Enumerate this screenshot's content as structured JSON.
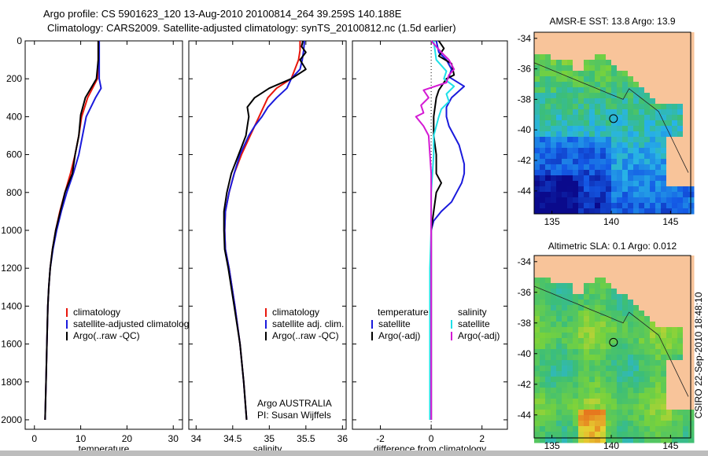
{
  "header": {
    "line1": "Argo profile: CS 5901623_120 13-Aug-2010 20100814_264 39.259S 140.188E",
    "line2": "Climatology: CARS2009. Satellite-adjusted climatology: synTS_20100812.nc (1.5d earlier)"
  },
  "side_credit": "CSIRO 22-Sep-2010 18:48:10",
  "colors": {
    "climatology": "#e8160c",
    "satellite": "#1a1adc",
    "argo": "#000000",
    "satellite_salinity": "#1ee0e8",
    "argo_salinity": "#d41ad4",
    "land": "#f8c49a"
  },
  "chart_data": [
    {
      "id": "temperature",
      "type": "line",
      "xlabel": "temperature",
      "ylabel": "",
      "xlim": [
        -2,
        32
      ],
      "ylim": [
        2050,
        0
      ],
      "xticks": [
        "0",
        "10",
        "20",
        "30"
      ],
      "yticks": [
        "0",
        "200",
        "400",
        "600",
        "800",
        "1000",
        "1200",
        "1400",
        "1600",
        "1800",
        "2000"
      ],
      "legend": [
        "climatology",
        "satellite-adjusted climatology",
        "Argo(..raw -QC)"
      ],
      "series": [
        {
          "name": "climatology",
          "depth": [
            0,
            100,
            200,
            300,
            400,
            500,
            600,
            700,
            800,
            900,
            1000,
            1100,
            1200,
            1300,
            1400,
            1500,
            1600,
            1800,
            2000
          ],
          "values": [
            13.8,
            13.8,
            13.6,
            11.5,
            10.2,
            9.6,
            8.8,
            7.8,
            6.6,
            5.5,
            4.6,
            3.9,
            3.4,
            3.1,
            2.9,
            2.8,
            2.7,
            2.5,
            2.3
          ]
        },
        {
          "name": "satellite-adjusted climatology",
          "depth": [
            0,
            100,
            200,
            250,
            300,
            400,
            500,
            600,
            700,
            800,
            900,
            1000,
            1100,
            1200,
            1300,
            1400,
            1500,
            1600,
            1800,
            2000
          ],
          "values": [
            14.0,
            14.0,
            14.0,
            14.4,
            13.2,
            11.2,
            10.4,
            9.6,
            8.4,
            7.0,
            5.8,
            4.8,
            4.0,
            3.4,
            3.1,
            2.9,
            2.8,
            2.7,
            2.5,
            2.3
          ]
        },
        {
          "name": "Argo(..raw -QC)",
          "depth": [
            0,
            100,
            200,
            300,
            390,
            500,
            600,
            700,
            800,
            900,
            1000,
            1100,
            1200,
            1300,
            1400,
            1500,
            1600,
            1800,
            2000
          ],
          "values": [
            13.8,
            13.8,
            13.4,
            11.0,
            10.0,
            9.6,
            8.8,
            8.2,
            6.6,
            5.6,
            4.6,
            3.9,
            3.4,
            3.1,
            2.9,
            2.8,
            2.7,
            2.5,
            2.3
          ]
        }
      ]
    },
    {
      "id": "salinity",
      "type": "line",
      "xlabel": "salinity",
      "ylabel": "",
      "xlim": [
        33.9,
        36.05
      ],
      "ylim": [
        2050,
        0
      ],
      "xticks": [
        "34",
        "34.5",
        "35",
        "35.5",
        "36"
      ],
      "legend": [
        "climatology",
        "satellite adj. clim.",
        "Argo(..raw -QC)"
      ],
      "annotation": [
        "Argo AUSTRALIA",
        "PI: Susan Wijffels"
      ],
      "series": [
        {
          "name": "climatology",
          "depth": [
            0,
            50,
            100,
            200,
            250,
            300,
            350,
            400,
            450,
            500,
            600,
            700,
            800,
            900,
            1000,
            1100,
            1200,
            1400,
            1600,
            1800,
            2000
          ],
          "values": [
            35.42,
            35.42,
            35.4,
            35.3,
            35.1,
            34.98,
            34.92,
            34.86,
            34.8,
            34.74,
            34.62,
            34.52,
            34.45,
            34.4,
            34.39,
            34.4,
            34.45,
            34.53,
            34.6,
            34.65,
            34.69
          ]
        },
        {
          "name": "satellite adj. clim.",
          "depth": [
            0,
            50,
            100,
            150,
            200,
            250,
            300,
            350,
            400,
            450,
            500,
            600,
            700,
            800,
            900,
            1000,
            1100,
            1200,
            1400,
            1600,
            1800,
            2000
          ],
          "values": [
            35.48,
            35.47,
            35.45,
            35.42,
            35.3,
            35.24,
            35.1,
            34.98,
            34.9,
            34.8,
            34.72,
            34.6,
            34.52,
            34.45,
            34.4,
            34.39,
            34.4,
            34.45,
            34.53,
            34.6,
            34.65,
            34.69
          ]
        },
        {
          "name": "Argo(..raw -QC)",
          "depth": [
            0,
            30,
            60,
            100,
            150,
            200,
            250,
            300,
            350,
            400,
            450,
            500,
            600,
            700,
            800,
            900,
            1000,
            1100,
            1200,
            1400,
            1600,
            1800,
            2000
          ],
          "values": [
            35.46,
            35.44,
            35.5,
            35.42,
            35.5,
            35.3,
            35.0,
            34.8,
            34.7,
            34.72,
            34.7,
            34.68,
            34.58,
            34.48,
            34.42,
            34.38,
            34.38,
            34.39,
            34.44,
            34.52,
            34.6,
            34.65,
            34.69
          ]
        }
      ]
    },
    {
      "id": "difference",
      "type": "line",
      "xlabel": "difference from climatology",
      "ylabel": "",
      "xlim": [
        -3.1,
        3.0
      ],
      "ylim": [
        2050,
        0
      ],
      "xticks": [
        "-2",
        "0",
        "2"
      ],
      "legend_left_title": "temperature",
      "legend_right_title": "salinity",
      "legend": [
        "satellite",
        "Argo(-adj)",
        "satellite",
        "Argo(-adj)"
      ],
      "series": [
        {
          "name": "temperature satellite",
          "depth": [
            0,
            60,
            100,
            150,
            190,
            240,
            300,
            350,
            400,
            450,
            500,
            550,
            600,
            650,
            700,
            750,
            800,
            850,
            900,
            950,
            1000,
            1100,
            1200,
            1400,
            1600,
            1800,
            2000
          ],
          "values": [
            0.2,
            0.3,
            0.6,
            0.8,
            0.7,
            1.3,
            0.8,
            0.6,
            0.6,
            0.7,
            0.9,
            1.1,
            1.2,
            1.3,
            1.3,
            1.2,
            1.0,
            0.8,
            0.4,
            0.1,
            0.0,
            0.0,
            0.0,
            0.0,
            0.0,
            0.0,
            0.0
          ]
        },
        {
          "name": "temperature Argo(-adj)",
          "depth": [
            0,
            40,
            80,
            120,
            180,
            200,
            260,
            300,
            400,
            500,
            600,
            700,
            750,
            800,
            900,
            1000,
            1200,
            1400,
            1600,
            1800,
            2000
          ],
          "values": [
            0.3,
            0.5,
            0.3,
            0.8,
            0.9,
            0.6,
            0.3,
            0.2,
            0.1,
            0.1,
            0.2,
            0.2,
            0.4,
            0.2,
            0.1,
            0.0,
            0.0,
            0.0,
            0.0,
            0.0,
            0.0
          ]
        },
        {
          "name": "salinity satellite",
          "depth": [
            0,
            100,
            160,
            200,
            240,
            280,
            320,
            360,
            400,
            450,
            500,
            600,
            700,
            800,
            1000,
            1200,
            1400,
            1600,
            1800,
            2000
          ],
          "values": [
            0.1,
            0.2,
            0.6,
            0.5,
            0.9,
            0.6,
            0.7,
            0.4,
            0.3,
            0.2,
            0.1,
            0.1,
            0.05,
            0.0,
            0.0,
            -0.05,
            -0.05,
            -0.05,
            -0.05,
            -0.05
          ]
        },
        {
          "name": "salinity Argo(-adj)",
          "depth": [
            0,
            60,
            100,
            150,
            180,
            220,
            260,
            300,
            340,
            380,
            400,
            450,
            500,
            600,
            700,
            800,
            1000,
            1200,
            1400,
            1600,
            1800,
            2000
          ],
          "values": [
            0.0,
            0.4,
            0.7,
            0.9,
            0.7,
            0.6,
            -0.3,
            -0.1,
            -0.4,
            -0.3,
            -0.6,
            -0.3,
            -0.1,
            -0.05,
            0.0,
            0.0,
            0.0,
            0.0,
            0.0,
            0.0,
            0.0,
            0.0
          ]
        }
      ]
    },
    {
      "id": "sst-map",
      "type": "heatmap",
      "title": "AMSR-E SST: 13.8 Argo: 13.9",
      "xlim": [
        133.5,
        146.7
      ],
      "ylim": [
        -45.5,
        -33.6
      ],
      "xticks": [
        "135",
        "140",
        "145"
      ],
      "yticks": [
        "-34",
        "-36",
        "-38",
        "-40",
        "-42",
        "-44"
      ],
      "marker": {
        "lon": 140.188,
        "lat": -39.259
      }
    },
    {
      "id": "sla-map",
      "type": "heatmap",
      "title": "Altimetric SLA: 0.1 Argo: 0.012",
      "xlim": [
        133.5,
        146.7
      ],
      "ylim": [
        -45.5,
        -33.6
      ],
      "xticks": [
        "135",
        "140",
        "145"
      ],
      "yticks": [
        "-34",
        "-36",
        "-38",
        "-40",
        "-42",
        "-44"
      ],
      "marker": {
        "lon": 140.188,
        "lat": -39.259
      }
    }
  ]
}
